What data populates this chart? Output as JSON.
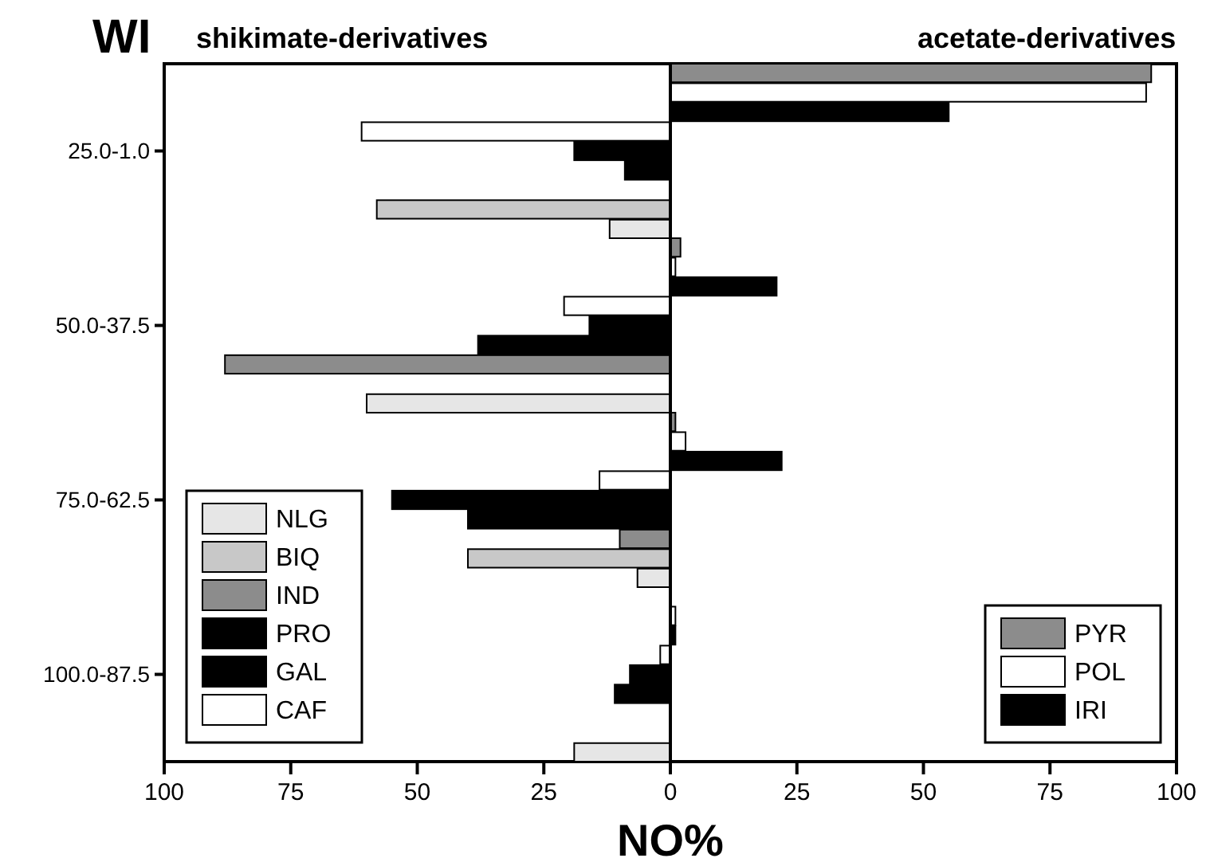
{
  "chart_data": {
    "type": "bar",
    "orientation": "horizontal",
    "ylabel": "WI",
    "xlabel": "NO%",
    "annotations": [
      "shikimate-derivatives",
      "acetate-derivatives"
    ],
    "categories": [
      "25.0-1.0",
      "50.0-37.5",
      "75.0-62.5",
      "100.0-87.5"
    ],
    "xlim": [
      -100,
      100
    ],
    "xticks": [
      {
        "value": -100,
        "label": "100"
      },
      {
        "value": -75,
        "label": "75"
      },
      {
        "value": -50,
        "label": "50"
      },
      {
        "value": -25,
        "label": "25"
      },
      0,
      25,
      50,
      75,
      100
    ],
    "legend": "bottom left",
    "series": [
      {
        "name": "PYR",
        "color": "#8c8c8c",
        "values": [
          95,
          2,
          1,
          null
        ]
      },
      {
        "name": "POL",
        "color": "#ffffff",
        "values": [
          94,
          1,
          3,
          1
        ]
      },
      {
        "name": "IRI",
        "color": "#000000",
        "values": [
          55,
          21,
          22,
          1
        ]
      },
      {
        "name": "CAF",
        "color": "#ffffff",
        "values": [
          -61,
          -21,
          -14,
          -2
        ]
      },
      {
        "name": "GAL",
        "color": "#000000",
        "values": [
          -19,
          -16,
          -55,
          -8
        ]
      },
      {
        "name": "PRO",
        "color": "#000000",
        "values": [
          -9,
          -38,
          -40,
          -11
        ]
      },
      {
        "name": "IND",
        "color": "#8c8c8c",
        "values": [
          null,
          -88,
          -10,
          null
        ]
      },
      {
        "name": "BIQ",
        "color": "#c8c8c8",
        "values": [
          -58,
          null,
          -40,
          null
        ]
      },
      {
        "name": "NLG",
        "color": "#e6e6e6",
        "values": [
          -12,
          -60,
          -6.5,
          -19
        ]
      }
    ]
  }
}
